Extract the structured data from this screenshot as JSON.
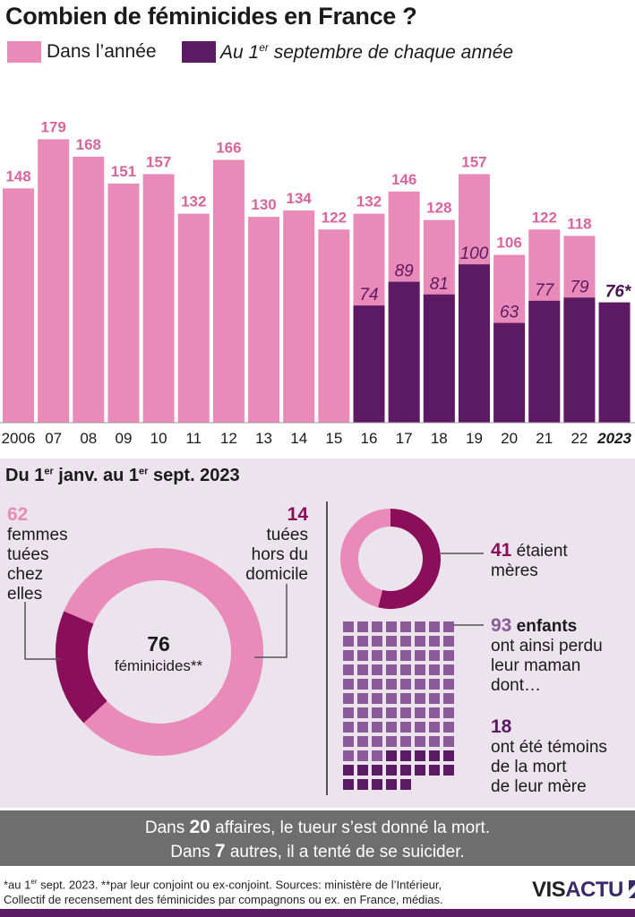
{
  "title": "Combien de féminicides en France ?",
  "legend": {
    "annual": {
      "label": "Dans l’année",
      "color": "#e98ab8"
    },
    "sept": {
      "label_pre": "Au 1",
      "label_sup": "er",
      "label_post": " septembre de chaque année",
      "color": "#5b1a63"
    }
  },
  "chart_data": {
    "type": "bar",
    "title": "Combien de féminicides en France ?",
    "categories": [
      "2006",
      "07",
      "08",
      "09",
      "10",
      "11",
      "12",
      "13",
      "14",
      "15",
      "16",
      "17",
      "18",
      "19",
      "20",
      "21",
      "22",
      "2023"
    ],
    "series": [
      {
        "name": "Dans l’année",
        "color": "#e98ab8",
        "values": [
          148,
          179,
          168,
          151,
          157,
          132,
          166,
          130,
          134,
          122,
          132,
          146,
          128,
          157,
          106,
          122,
          118,
          null
        ]
      },
      {
        "name": "Au 1er septembre de chaque année",
        "color": "#5b1a63",
        "values": [
          null,
          null,
          null,
          null,
          null,
          null,
          null,
          null,
          null,
          null,
          74,
          89,
          81,
          100,
          63,
          77,
          79,
          76
        ]
      }
    ],
    "value_labels_annual": [
      "148",
      "179",
      "168",
      "151",
      "157",
      "132",
      "166",
      "130",
      "134",
      "122",
      "132",
      "146",
      "128",
      "157",
      "106",
      "122",
      "118",
      ""
    ],
    "value_labels_sept": [
      "",
      "",
      "",
      "",
      "",
      "",
      "",
      "",
      "",
      "",
      "74",
      "89",
      "81",
      "100",
      "63",
      "77",
      "79",
      "76*"
    ],
    "ylim": [
      0,
      190
    ],
    "xlabel": "",
    "ylabel": ""
  },
  "panel": {
    "title_pre": "Du 1",
    "title_sup1": "er",
    "title_mid": " janv. au 1",
    "title_sup2": "er",
    "title_post": " sept. 2023",
    "home": {
      "number": "62",
      "lines": [
        "femmes",
        "tuées",
        "chez",
        "elles"
      ]
    },
    "outside": {
      "number": "14",
      "lines": [
        "tuées",
        "hors du",
        "domicile"
      ]
    },
    "total": {
      "number": "76",
      "label": "féminicides**"
    },
    "donut_home": 62,
    "donut_outside": 14,
    "mothers": {
      "number": "41",
      "text1": "étaient",
      "text2": "mères",
      "donut_value": 41,
      "donut_total": 76
    },
    "children": {
      "number": "93",
      "bold_word": "enfants",
      "lines": [
        "ont ainsi perdu",
        "leur maman",
        "dont…"
      ],
      "total": 93
    },
    "witnesses": {
      "number": "18",
      "lines": [
        "ont été témoins",
        "de la mort",
        "de leur mère"
      ],
      "total": 18
    },
    "colors": {
      "pink": "#e98ab8",
      "dark": "#8b0e5a",
      "purple": "#5b1a63",
      "square": "#8a5a9a"
    }
  },
  "banner": {
    "line1_pre": "Dans ",
    "line1_num": "20",
    "line1_post": " affaires, le tueur s’est donné la mort.",
    "line2_pre": "Dans ",
    "line2_num": "7",
    "line2_post": " autres, il a tenté de se suicider."
  },
  "footnote": {
    "line1_pre": "*au 1",
    "line1_sup": "er",
    "line1_post": " sept. 2023. **par leur conjoint ou ex-conjoint. Sources: ministère de l’Intérieur,",
    "line2": "Collectif de recensement des féminicides par compagnons ou ex. en France, médias."
  },
  "logo": {
    "part1": "VIS",
    "part2": "ACTU"
  }
}
